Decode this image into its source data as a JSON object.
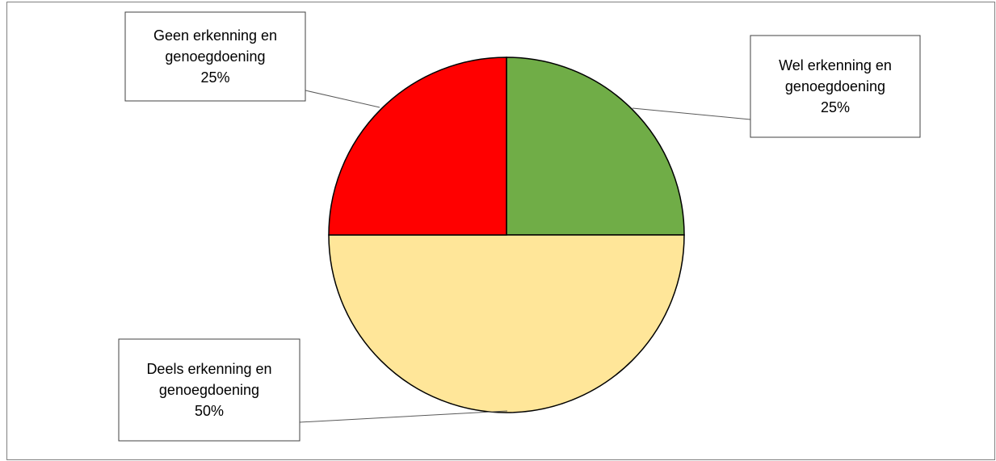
{
  "chart_data": {
    "type": "pie",
    "title": "",
    "legend": "none",
    "slices": [
      {
        "line1": "Wel erkenning en",
        "line2": "genoegdoening",
        "value": 25,
        "pct": "25%",
        "color": "#70AD47"
      },
      {
        "line1": "Deels erkenning en",
        "line2": "genoegdoening",
        "value": 50,
        "pct": "50%",
        "color": "#FFE699"
      },
      {
        "line1": "Geen erkenning en",
        "line2": "genoegdoening",
        "value": 25,
        "pct": "25%",
        "color": "#FF0000"
      }
    ]
  }
}
